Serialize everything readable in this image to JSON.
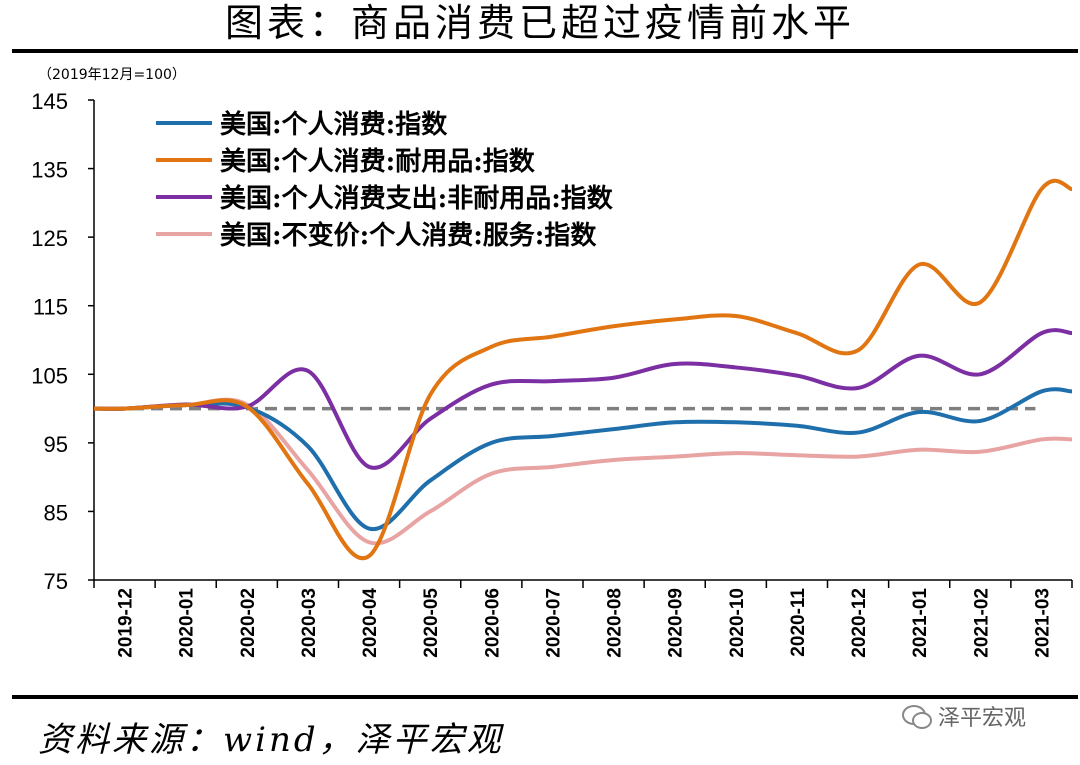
{
  "title": "图表：商品消费已超过疫情前水平",
  "unit_note": "（2019年12月=100）",
  "source": "资料来源：wind，泽平宏观",
  "watermark": "泽平宏观",
  "colors": {
    "series1": "#1f6fad",
    "series2": "#e07512",
    "series3": "#7b2fa3",
    "series4": "#e8a3a3",
    "baseline": "#7f7f7f"
  },
  "chart_data": {
    "type": "line",
    "categories": [
      "2019-12",
      "2020-01",
      "2020-02",
      "2020-03",
      "2020-04",
      "2020-05",
      "2020-06",
      "2020-07",
      "2020-08",
      "2020-09",
      "2020-10",
      "2020-11",
      "2020-12",
      "2021-01",
      "2021-02",
      "2021-03"
    ],
    "ylim": [
      75,
      145
    ],
    "yticks": [
      75,
      85,
      95,
      105,
      115,
      125,
      135,
      145
    ],
    "baseline": 100,
    "series": [
      {
        "name": "美国:个人消费:指数",
        "values": [
          100,
          100.5,
          100.2,
          94.5,
          82.5,
          89.5,
          95,
          96,
          97,
          98,
          98,
          97.5,
          96.5,
          99.5,
          98.2,
          102.5
        ]
      },
      {
        "name": "美国:个人消费:耐用品:指数",
        "values": [
          100,
          100.5,
          100.3,
          89,
          78.5,
          102,
          109,
          110.5,
          112,
          113,
          113.5,
          111,
          108.5,
          121,
          115.5,
          132
        ]
      },
      {
        "name": "美国:个人消费支出:非耐用品:指数",
        "values": [
          100,
          100.6,
          100.3,
          105.5,
          91.5,
          98.5,
          103.5,
          104,
          104.5,
          106.5,
          106,
          104.8,
          103,
          107.7,
          105,
          111
        ]
      },
      {
        "name": "美国:不变价:个人消费:服务:指数",
        "values": [
          100,
          100.5,
          100.6,
          91,
          80.5,
          85,
          90.5,
          91.5,
          92.5,
          93,
          93.5,
          93.2,
          93,
          94,
          93.7,
          95.5
        ]
      }
    ]
  }
}
